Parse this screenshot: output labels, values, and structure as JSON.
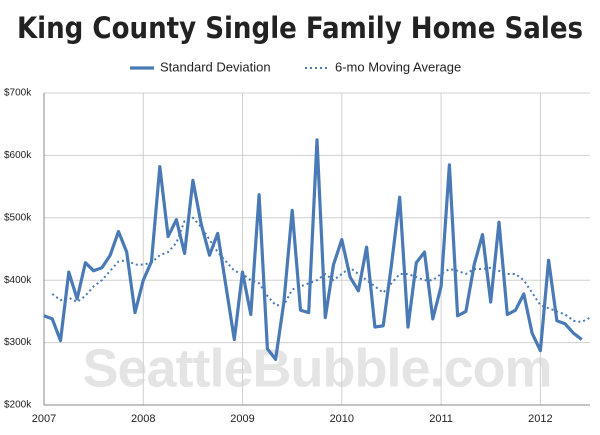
{
  "chart_data": {
    "type": "line",
    "title": "King County Single Family Home Sales",
    "watermark": "SeattleBubble.com",
    "categories": [
      "2007",
      null,
      null,
      null,
      null,
      null,
      null,
      null,
      null,
      null,
      null,
      null,
      "2008",
      null,
      null,
      null,
      null,
      null,
      null,
      null,
      null,
      null,
      null,
      null,
      "2009",
      null,
      null,
      null,
      null,
      null,
      null,
      null,
      null,
      null,
      null,
      null,
      "2010",
      null,
      null,
      null,
      null,
      null,
      null,
      null,
      null,
      null,
      null,
      null,
      "2011",
      null,
      null,
      null,
      null,
      null,
      null,
      null,
      null,
      null,
      null,
      null,
      "2012",
      null,
      null,
      null,
      null,
      null,
      null
    ],
    "series": [
      {
        "name": "Standard Deviation",
        "color": "#4a7ab5",
        "style": "solid",
        "values": [
          343,
          338,
          303,
          413,
          370,
          428,
          415,
          420,
          440,
          478,
          445,
          348,
          400,
          430,
          582,
          470,
          497,
          443,
          560,
          490,
          440,
          475,
          390,
          305,
          413,
          345,
          537,
          290,
          273,
          365,
          512,
          352,
          348,
          625,
          340,
          425,
          465,
          405,
          383,
          453,
          325,
          327,
          425,
          533,
          325,
          428,
          445,
          338,
          390,
          585,
          343,
          350,
          425,
          473,
          365,
          493,
          345,
          352,
          378,
          315,
          287,
          432,
          335,
          330,
          315,
          305,
          null
        ]
      },
      {
        "name": "6-mo Moving Average",
        "color": "#4a7ab5",
        "style": "dotted",
        "values": [
          null,
          378,
          368,
          372,
          365,
          375,
          390,
          400,
          415,
          430,
          432,
          425,
          425,
          428,
          440,
          445,
          460,
          495,
          500,
          485,
          465,
          445,
          430,
          415,
          410,
          400,
          395,
          375,
          360,
          360,
          385,
          390,
          395,
          400,
          410,
          400,
          410,
          420,
          410,
          400,
          390,
          380,
          395,
          410,
          410,
          405,
          400,
          400,
          410,
          418,
          415,
          410,
          418,
          418,
          420,
          415,
          410,
          410,
          400,
          380,
          360,
          355,
          350,
          345,
          335,
          333,
          340
        ]
      }
    ],
    "ylim": [
      200,
      700
    ],
    "yticks": [
      {
        "value": 200,
        "label": "$200k"
      },
      {
        "value": 300,
        "label": "$300k"
      },
      {
        "value": 400,
        "label": "$400k"
      },
      {
        "value": 500,
        "label": "$500k"
      },
      {
        "value": 600,
        "label": "$600k"
      },
      {
        "value": 700,
        "label": "$700k"
      }
    ],
    "grid": true
  }
}
